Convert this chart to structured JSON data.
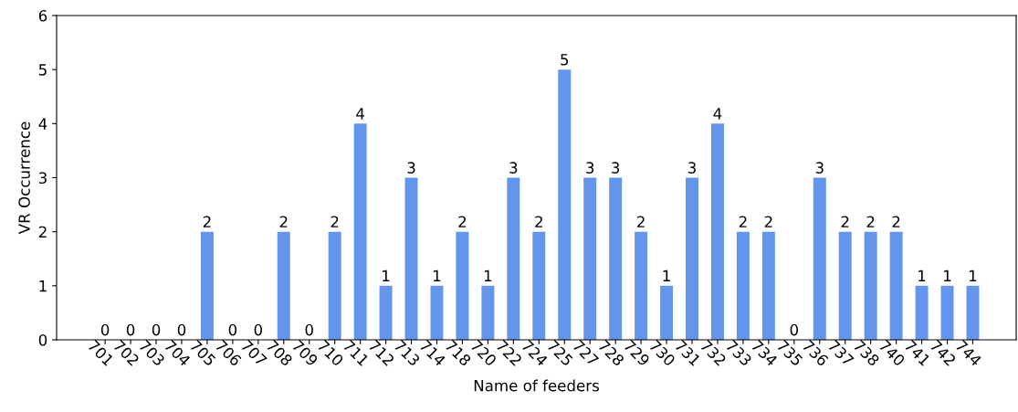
{
  "chart_data": {
    "type": "bar",
    "xlabel": "Name of feeders",
    "ylabel": "VR Occurrence",
    "categories": [
      "701",
      "702",
      "703",
      "704",
      "705",
      "706",
      "707",
      "708",
      "709",
      "710",
      "711",
      "712",
      "713",
      "714",
      "718",
      "720",
      "722",
      "724",
      "725",
      "727",
      "728",
      "729",
      "730",
      "731",
      "732",
      "733",
      "734",
      "735",
      "736",
      "737",
      "738",
      "740",
      "741",
      "742",
      "744"
    ],
    "values": [
      0,
      0,
      0,
      0,
      2,
      0,
      0,
      2,
      0,
      2,
      4,
      1,
      3,
      1,
      2,
      1,
      3,
      2,
      5,
      3,
      3,
      2,
      1,
      3,
      4,
      2,
      2,
      0,
      3,
      2,
      2,
      2,
      1,
      1,
      1
    ],
    "color": "#6495ed",
    "ylim": [
      0,
      6
    ],
    "yticks": [
      0,
      1,
      2,
      3,
      4,
      5,
      6
    ],
    "data_labels": true,
    "grid": false
  }
}
